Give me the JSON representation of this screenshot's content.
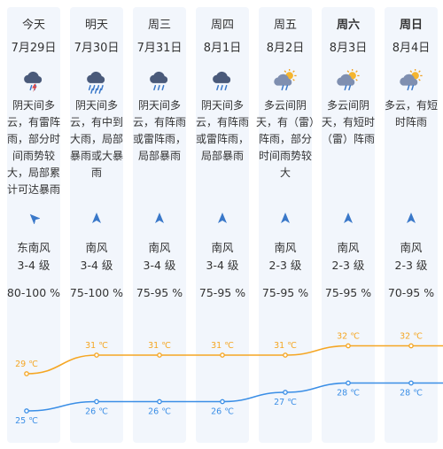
{
  "colors": {
    "column_bg": "#f2f6fc",
    "high_line": "#f5a623",
    "low_line": "#3a8ee6",
    "wind_arrow": "#3a78c9"
  },
  "days": [
    {
      "day": "今天",
      "date": "7月29日",
      "icon": "thunderstorm-icon",
      "desc": "阴天间多云，有雷阵雨，部分时间雨势较大，局部累计可达暴雨",
      "wind_dir": "东南风",
      "wind_level": "3-4 级",
      "humidity": "80-100 %",
      "high": "29 ℃",
      "low": "25 ℃",
      "bold": false
    },
    {
      "day": "明天",
      "date": "7月30日",
      "icon": "heavy-rain-icon",
      "desc": "阴天间多云，有中到大雨，局部暴雨或大暴雨",
      "wind_dir": "南风",
      "wind_level": "3-4 级",
      "humidity": "75-100 %",
      "high": "31 ℃",
      "low": "26 ℃",
      "bold": false
    },
    {
      "day": "周三",
      "date": "7月31日",
      "icon": "rain-cloud-icon",
      "desc": "阴天间多云，有阵雨或雷阵雨，局部暴雨",
      "wind_dir": "南风",
      "wind_level": "3-4 级",
      "humidity": "75-95 %",
      "high": "31 ℃",
      "low": "26 ℃",
      "bold": false
    },
    {
      "day": "周四",
      "date": "8月1日",
      "icon": "rain-cloud-icon",
      "desc": "阴天间多云，有阵雨或雷阵雨，局部暴雨",
      "wind_dir": "南风",
      "wind_level": "3-4 级",
      "humidity": "75-95 %",
      "high": "31 ℃",
      "low": "26 ℃",
      "bold": false
    },
    {
      "day": "周五",
      "date": "8月2日",
      "icon": "sun-cloud-rain-icon",
      "desc": "多云间阴天，有（雷）阵雨，部分时间雨势较大",
      "wind_dir": "南风",
      "wind_level": "2-3 级",
      "humidity": "75-95 %",
      "high": "31 ℃",
      "low": "27 ℃",
      "bold": false
    },
    {
      "day": "周六",
      "date": "8月3日",
      "icon": "sun-cloud-rain-icon",
      "desc": "多云间阴天，有短时（雷）阵雨",
      "wind_dir": "南风",
      "wind_level": "2-3 级",
      "humidity": "75-95 %",
      "high": "32 ℃",
      "low": "28 ℃",
      "bold": true
    },
    {
      "day": "周日",
      "date": "8月4日",
      "icon": "sun-cloud-rain-icon",
      "desc": "多云，有短时阵雨",
      "wind_dir": "南风",
      "wind_level": "2-3 级",
      "humidity": "70-95 %",
      "high": "32 ℃",
      "low": "28 ℃",
      "bold": true
    }
  ],
  "chart_data": {
    "type": "line",
    "categories": [
      "7月29日",
      "7月30日",
      "7月31日",
      "8月1日",
      "8月2日",
      "8月3日",
      "8月4日"
    ],
    "series": [
      {
        "values": [
          29,
          31,
          31,
          31,
          31,
          32,
          32
        ]
      },
      {
        "values": [
          25,
          26,
          26,
          26,
          27,
          28,
          28
        ]
      }
    ],
    "xlabel": "",
    "ylabel": ""
  }
}
